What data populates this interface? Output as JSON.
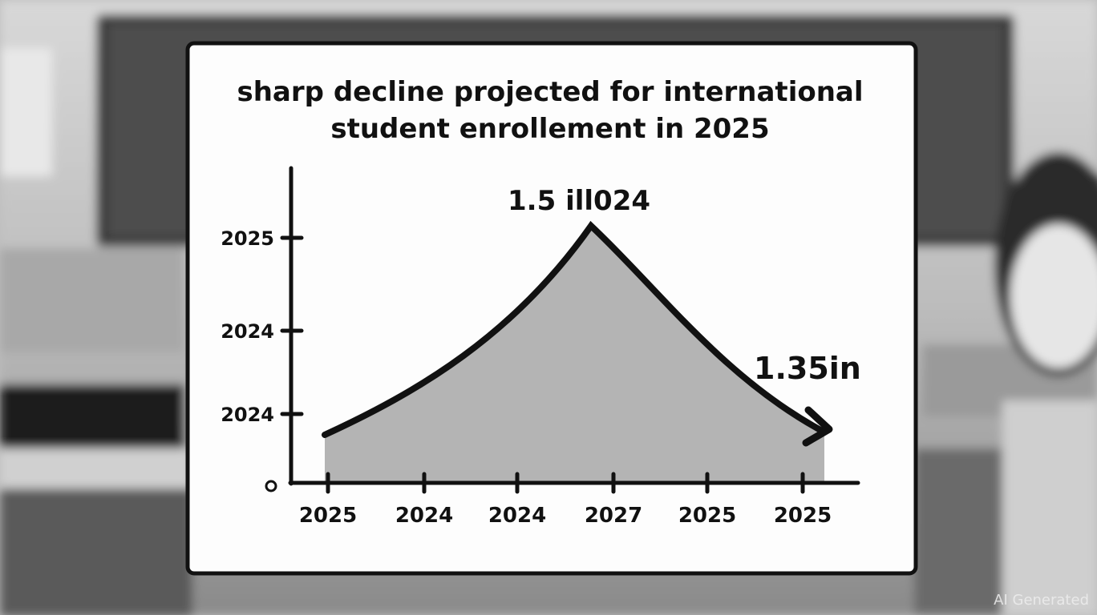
{
  "header": {
    "title_lines": [
      "sharp decline projected for international",
      "student enrollement in  2025"
    ]
  },
  "plot": {
    "y_axis": {
      "labels": [
        "2025",
        "2024",
        "2024",
        "0"
      ]
    },
    "x_axis": {
      "labels": [
        "2025",
        "2024",
        "2024",
        "2027",
        "2025",
        "2025"
      ]
    },
    "annotations": [
      "1.5 ill024",
      "1.35in"
    ]
  },
  "watermark": "AI Generated"
}
